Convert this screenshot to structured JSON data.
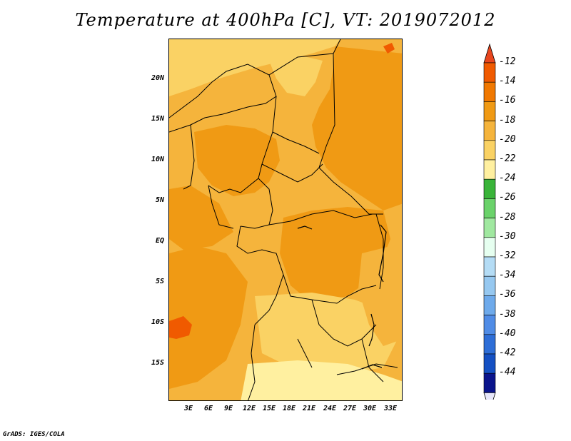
{
  "title": "Temperature at 400hPa [C], VT: 2019072012",
  "footer": "GrADS: IGES/COLA",
  "lat_labels": [
    "20N",
    "15N",
    "10N",
    "5N",
    "EQ",
    "5S",
    "10S",
    "15S"
  ],
  "lon_labels": [
    "3E",
    "6E",
    "9E",
    "12E",
    "15E",
    "18E",
    "21E",
    "24E",
    "27E",
    "30E",
    "33E"
  ],
  "colorbar": {
    "levels": [
      "-12",
      "-14",
      "-16",
      "-18",
      "-20",
      "-22",
      "-24",
      "-26",
      "-28",
      "-30",
      "-32",
      "-34",
      "-36",
      "-38",
      "-40",
      "-42",
      "-44"
    ],
    "colors": [
      "#f05a00",
      "#f07800",
      "#f09a14",
      "#f5b43c",
      "#fad264",
      "#fff0a0",
      "#39b439",
      "#6ad26a",
      "#a0e8a0",
      "#e6fff0",
      "#b4dcf5",
      "#96c8f0",
      "#6eaaeb",
      "#508ce6",
      "#2e6ed7",
      "#1450c3",
      "#0a148c"
    ],
    "top_arrow_color": "#e8461e",
    "bottom_arrow_color": "#e6e6fa"
  },
  "field_colors": {
    "t_-12": "#f05a00",
    "t_-14": "#f07800",
    "t_-16": "#f09a14",
    "t_-18": "#f5b43c",
    "t_-20": "#fad264",
    "t_-22": "#fff0a0"
  }
}
